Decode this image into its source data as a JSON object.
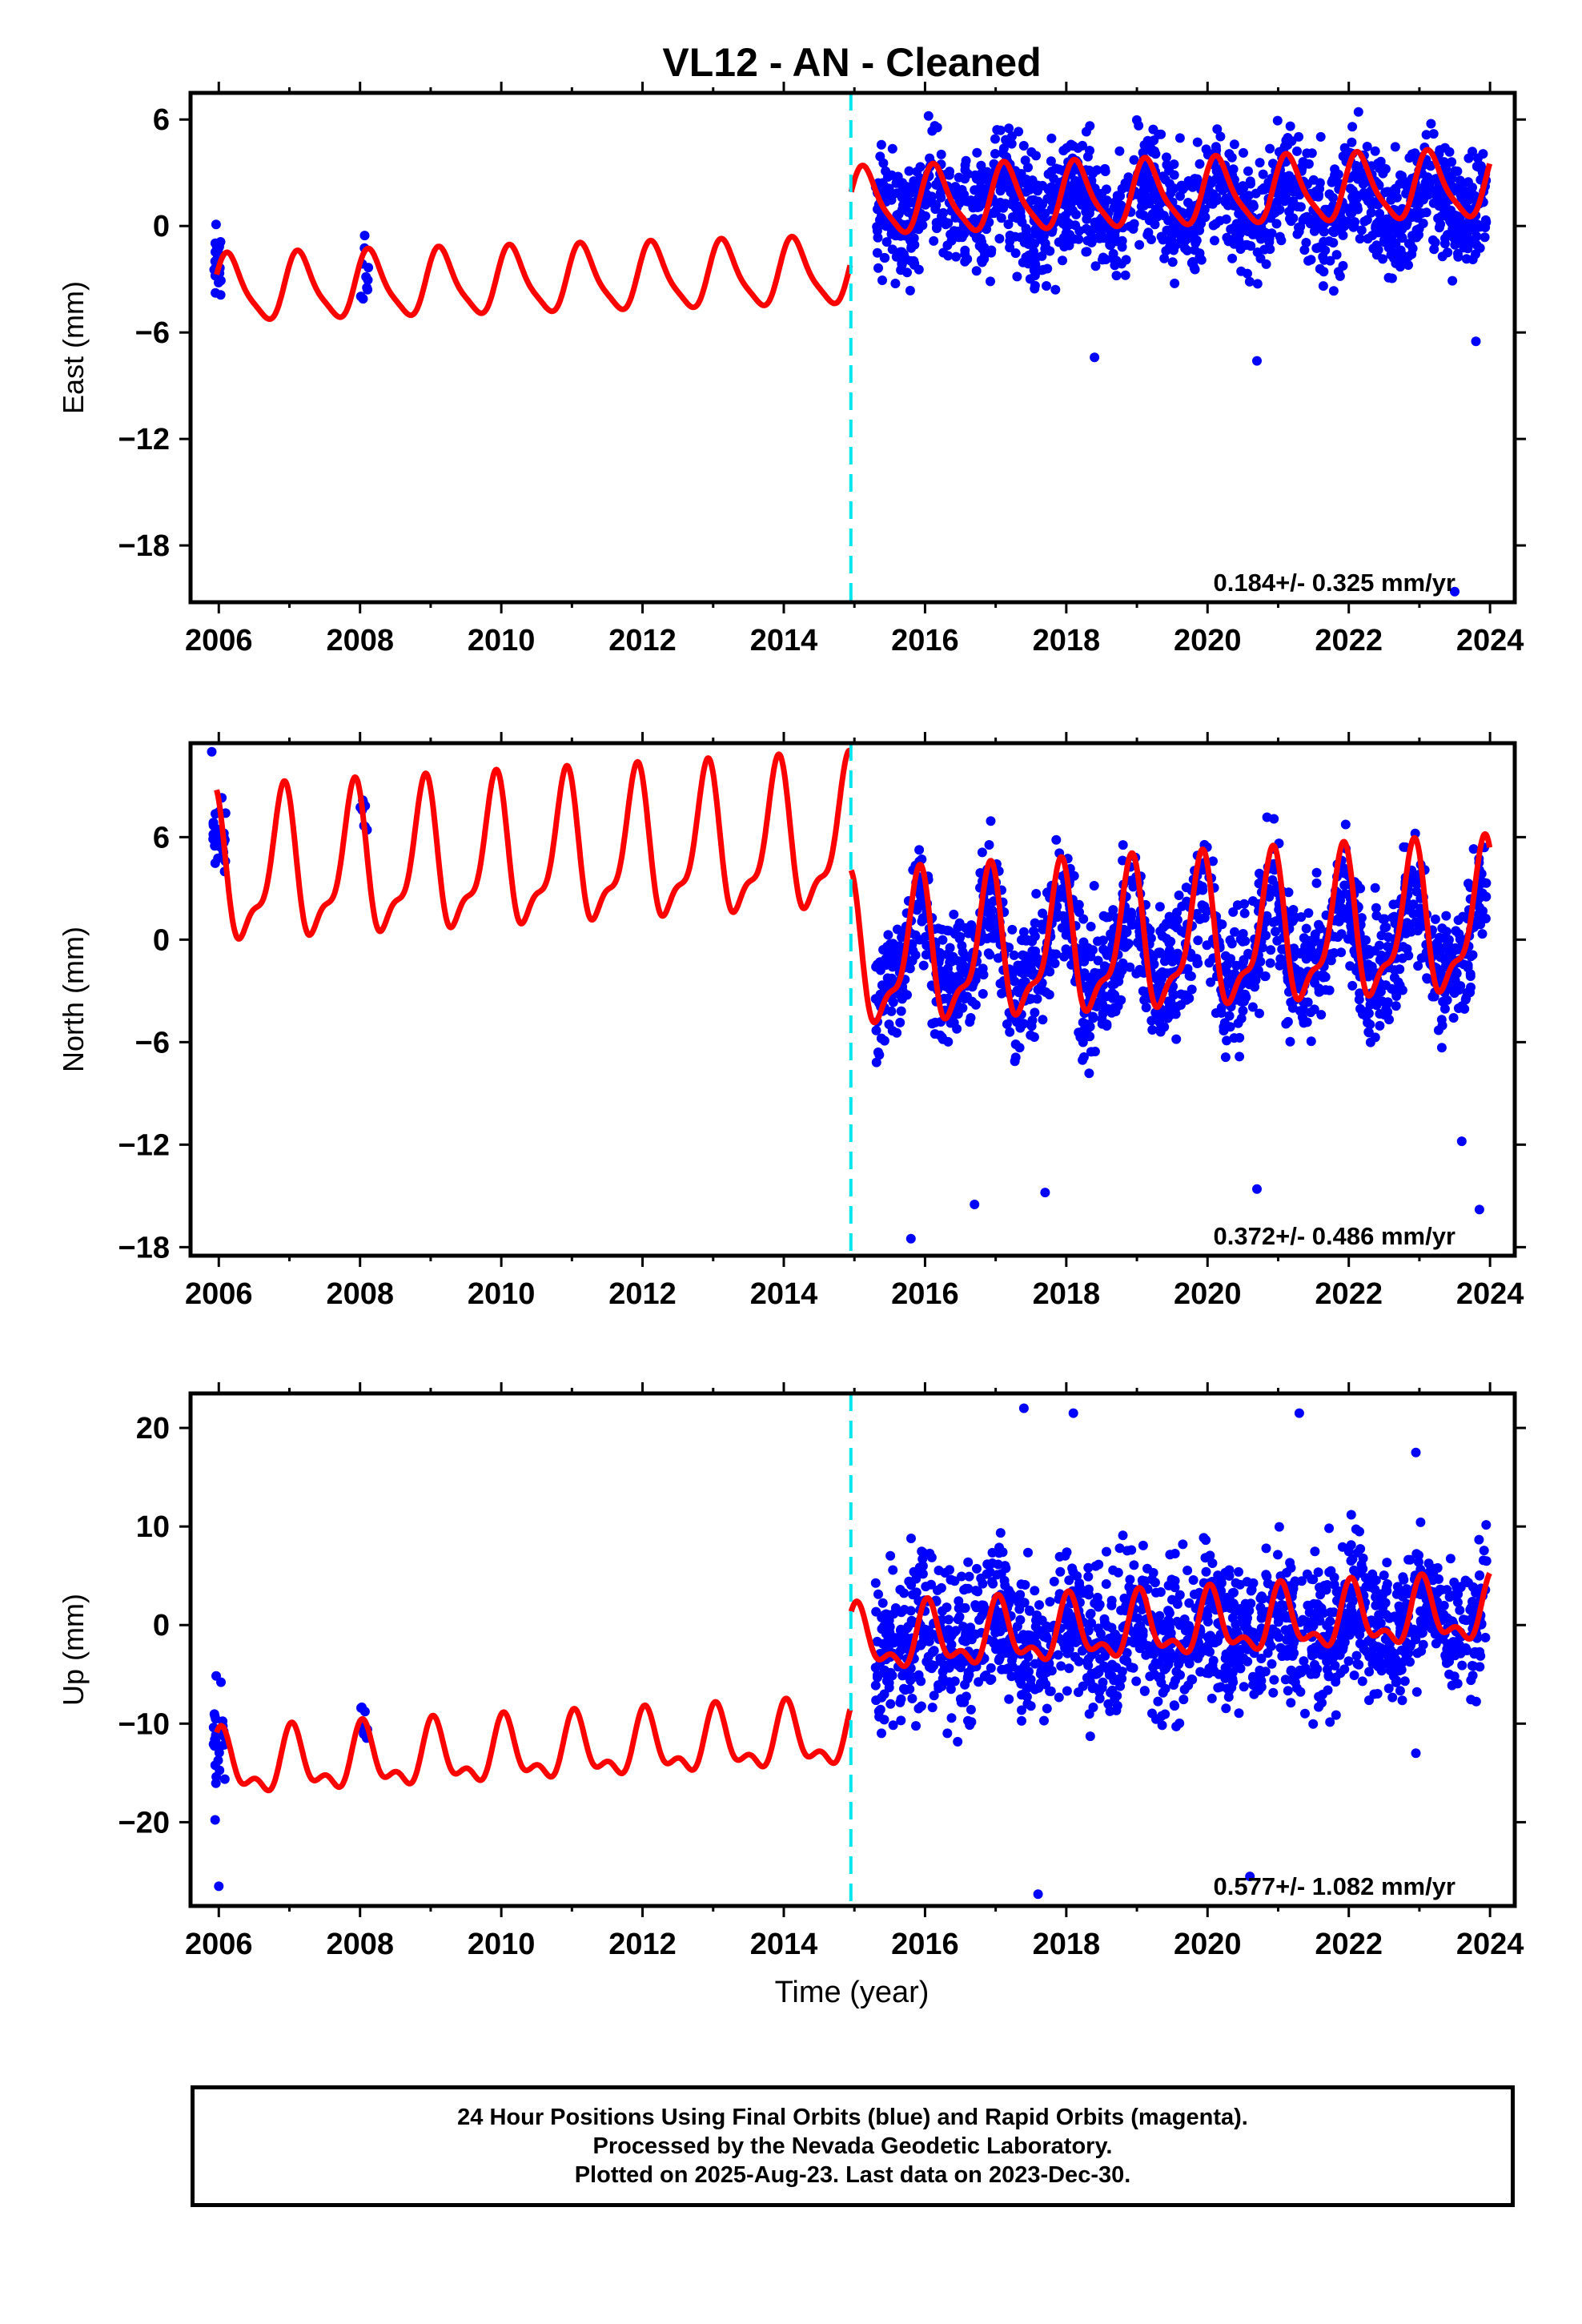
{
  "chart_data": {
    "title": "VL12  - AN - Cleaned",
    "xlabel": "Time (year)",
    "x_ticks": [
      "2006",
      "2008",
      "2010",
      "2012",
      "2014",
      "2016",
      "2018",
      "2020",
      "2022",
      "2024"
    ],
    "xlim": [
      2005.6,
      2024.35
    ],
    "discontinuity_x": 2014.95,
    "colors": {
      "data": "#0000ff",
      "model": "#ff0000",
      "break": "#00e5ee"
    },
    "panels": [
      {
        "name": "east",
        "type": "scatter",
        "ylabel": "East (mm)",
        "ylim": [
          -21.2,
          7.5
        ],
        "y_ticks": [
          "6",
          "0",
          "−6",
          "−12",
          "−18"
        ],
        "rate": "0.184+/- 0.325 mm/yr",
        "model": {
          "offset_before": -3.6,
          "offset_after": 0.3,
          "trend": 0.184,
          "seasonal_amp": 1.8,
          "semiannual_amp": 0.4,
          "phase": 0.1
        },
        "data_clusters": [
          {
            "x": [
              2005.92,
              2006.05
            ],
            "center": -2.2,
            "spread": 3.2,
            "count": 28
          },
          {
            "x": [
              2008.0,
              2008.12
            ],
            "center": -2.4,
            "spread": 3.4,
            "count": 10
          },
          {
            "x": [
              2015.3,
              2023.95
            ],
            "center": 0.3,
            "spread": 5.2,
            "count": 1600
          }
        ],
        "outliers": [
          [
            2016.05,
            6.2
          ],
          [
            2023.8,
            -6.5
          ],
          [
            2023.5,
            -20.6
          ],
          [
            2020.7,
            -7.6
          ],
          [
            2018.4,
            -7.4
          ]
        ]
      },
      {
        "name": "north",
        "type": "scatter",
        "ylabel": "North (mm)",
        "ylim": [
          -18.5,
          11.5
        ],
        "y_ticks": [
          "6",
          "0",
          "−6",
          "−12",
          "−18"
        ],
        "rate": "0.372+/- 0.486 mm/yr",
        "model": {
          "offset_before": 3.7,
          "offset_after": -3.2,
          "trend": 0.372,
          "seasonal_amp": 4.0,
          "semiannual_amp": 1.5,
          "phase": 0.35
        },
        "data_clusters": [
          {
            "x": [
              2005.92,
              2006.1
            ],
            "center": 6.0,
            "spread": 2.6,
            "count": 30
          },
          {
            "x": [
              2008.0,
              2008.12
            ],
            "center": 7.0,
            "spread": 2.5,
            "count": 8
          },
          {
            "x": [
              2015.3,
              2023.95
            ],
            "center": -1.2,
            "spread": 6.0,
            "count": 1600
          }
        ],
        "outliers": [
          [
            2005.9,
            11.0
          ],
          [
            2015.8,
            -17.5
          ],
          [
            2016.7,
            -15.5
          ],
          [
            2023.6,
            -11.8
          ],
          [
            2023.85,
            -15.8
          ],
          [
            2017.7,
            -14.8
          ],
          [
            2020.7,
            -14.6
          ]
        ]
      },
      {
        "name": "up",
        "type": "scatter",
        "ylabel": "Up (mm)",
        "ylim": [
          -28.5,
          23.5
        ],
        "y_ticks": [
          "20",
          "10",
          "0",
          "−10",
          "−20"
        ],
        "rate": "0.577+/- 1.082 mm/yr",
        "model": {
          "offset_before": -14.5,
          "offset_after": -5.0,
          "trend": 0.577,
          "seasonal_amp": 2.8,
          "semiannual_amp": 1.5,
          "phase": 0.2
        },
        "data_clusters": [
          {
            "x": [
              2005.92,
              2006.1
            ],
            "center": -12.0,
            "spread": 9.0,
            "count": 28
          },
          {
            "x": [
              2008.0,
              2008.12
            ],
            "center": -9.0,
            "spread": 7.0,
            "count": 8
          },
          {
            "x": [
              2015.3,
              2023.95
            ],
            "center": -1.0,
            "spread": 12.0,
            "count": 1600
          }
        ],
        "outliers": [
          [
            2017.4,
            22.0
          ],
          [
            2018.1,
            21.5
          ],
          [
            2021.3,
            21.5
          ],
          [
            2017.6,
            -27.3
          ],
          [
            2020.6,
            -25.5
          ],
          [
            2006.0,
            -26.5
          ],
          [
            2022.95,
            17.5
          ],
          [
            2023.95,
            6.5
          ],
          [
            2022.95,
            -13.0
          ]
        ]
      }
    ]
  },
  "footer": {
    "line1": "24 Hour Positions Using Final Orbits (blue) and Rapid Orbits (magenta).",
    "line2": "Processed by the Nevada Geodetic Laboratory.",
    "line3": "Plotted on 2025-Aug-23. Last data on 2023-Dec-30."
  }
}
